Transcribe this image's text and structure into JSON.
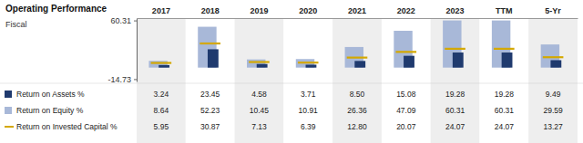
{
  "chart_data": {
    "type": "bar",
    "title": "Operating Performance",
    "xlabel": "Fiscal",
    "categories": [
      "2017",
      "2018",
      "2019",
      "2020",
      "2021",
      "2022",
      "2023",
      "TTM",
      "5-Yr"
    ],
    "series": [
      {
        "name": "Return on Assets %",
        "type": "bar",
        "color": "#1f3a6e",
        "values": [
          3.24,
          23.45,
          4.58,
          3.71,
          8.5,
          15.08,
          19.28,
          19.28,
          9.49
        ],
        "value_labels": [
          "3.24",
          "23.45",
          "4.58",
          "3.71",
          "8.50",
          "15.08",
          "19.28",
          "19.28",
          "9.49"
        ]
      },
      {
        "name": "Return on Equity %",
        "type": "bar",
        "color": "#a8b8d8",
        "values": [
          8.64,
          52.23,
          10.45,
          10.91,
          26.36,
          47.09,
          60.31,
          60.31,
          29.59
        ],
        "value_labels": [
          "8.64",
          "52.23",
          "10.45",
          "10.91",
          "26.36",
          "47.09",
          "60.31",
          "60.31",
          "29.59"
        ]
      },
      {
        "name": "Return on Invested Capital %",
        "type": "scatter",
        "marker": "dash",
        "color": "#d4a800",
        "values": [
          5.95,
          30.87,
          7.13,
          6.39,
          12.8,
          20.07,
          24.07,
          24.07,
          13.27
        ],
        "value_labels": [
          "5.95",
          "30.87",
          "7.13",
          "6.39",
          "12.80",
          "20.07",
          "24.07",
          "24.07",
          "13.27"
        ]
      }
    ],
    "ylim": [
      -17.7316,
      63.3116
    ],
    "yticks": [
      -14.73,
      60.31
    ],
    "grid": false,
    "legend": "lower left",
    "data_labels": true
  }
}
